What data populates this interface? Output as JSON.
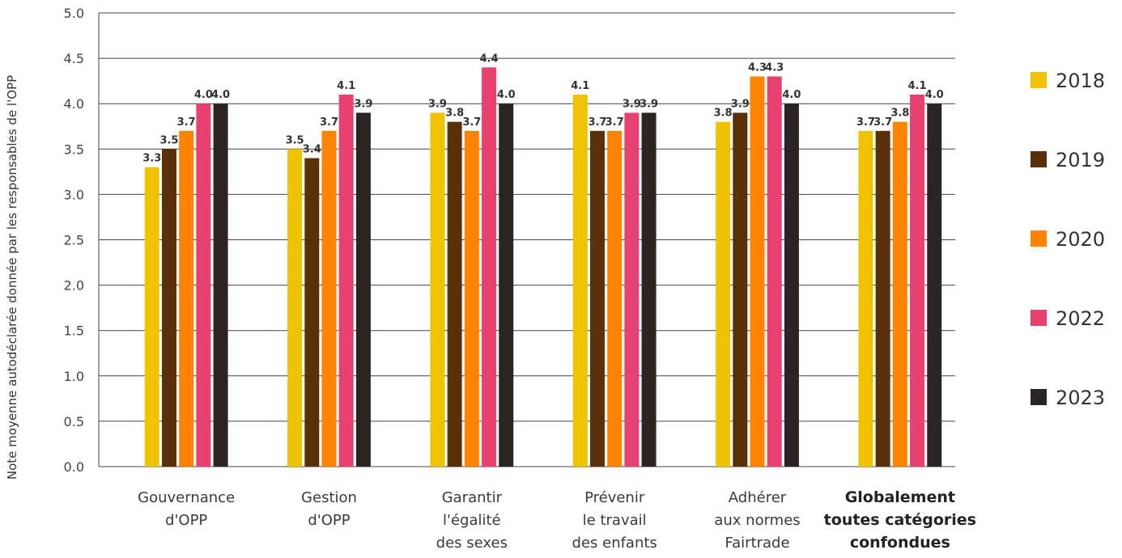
{
  "chart_data": {
    "type": "bar",
    "title": "",
    "ylabel": "Note moyenne autodéclarée donnée par les responsables de l'OPP",
    "xlabel": "",
    "ylim": [
      0,
      5
    ],
    "yticks": [
      "0.0",
      "0.5",
      "1.0",
      "1.5",
      "2.0",
      "2.5",
      "3.0",
      "3.5",
      "4.0",
      "4.5",
      "5.0"
    ],
    "grid": true,
    "legend_position": "right",
    "categories": [
      [
        "Gouvernance",
        "d'OPP"
      ],
      [
        "Gestion",
        "d'OPP"
      ],
      [
        "Garantir",
        "l'égalité",
        "des sexes"
      ],
      [
        "Prévenir",
        "le travail",
        "des enfants"
      ],
      [
        "Adhérer",
        "aux normes",
        "Fairtrade"
      ],
      [
        "Globalement",
        "toutes catégories",
        "confondues"
      ]
    ],
    "bold_category_index": 5,
    "series": [
      {
        "name": "2018",
        "color": "#efc300",
        "values": [
          3.3,
          3.5,
          3.9,
          4.1,
          3.8,
          3.7
        ]
      },
      {
        "name": "2019",
        "color": "#5a3008",
        "values": [
          3.5,
          3.4,
          3.8,
          3.7,
          3.9,
          3.7
        ]
      },
      {
        "name": "2020",
        "color": "#ff8200",
        "values": [
          3.7,
          3.7,
          3.7,
          3.7,
          4.3,
          3.8
        ]
      },
      {
        "name": "2022",
        "color": "#e8416f",
        "values": [
          4.0,
          4.1,
          4.4,
          3.9,
          4.3,
          4.1
        ]
      },
      {
        "name": "2023",
        "color": "#2a2523",
        "values": [
          4.0,
          3.9,
          4.0,
          3.9,
          4.0,
          4.0
        ]
      }
    ]
  }
}
